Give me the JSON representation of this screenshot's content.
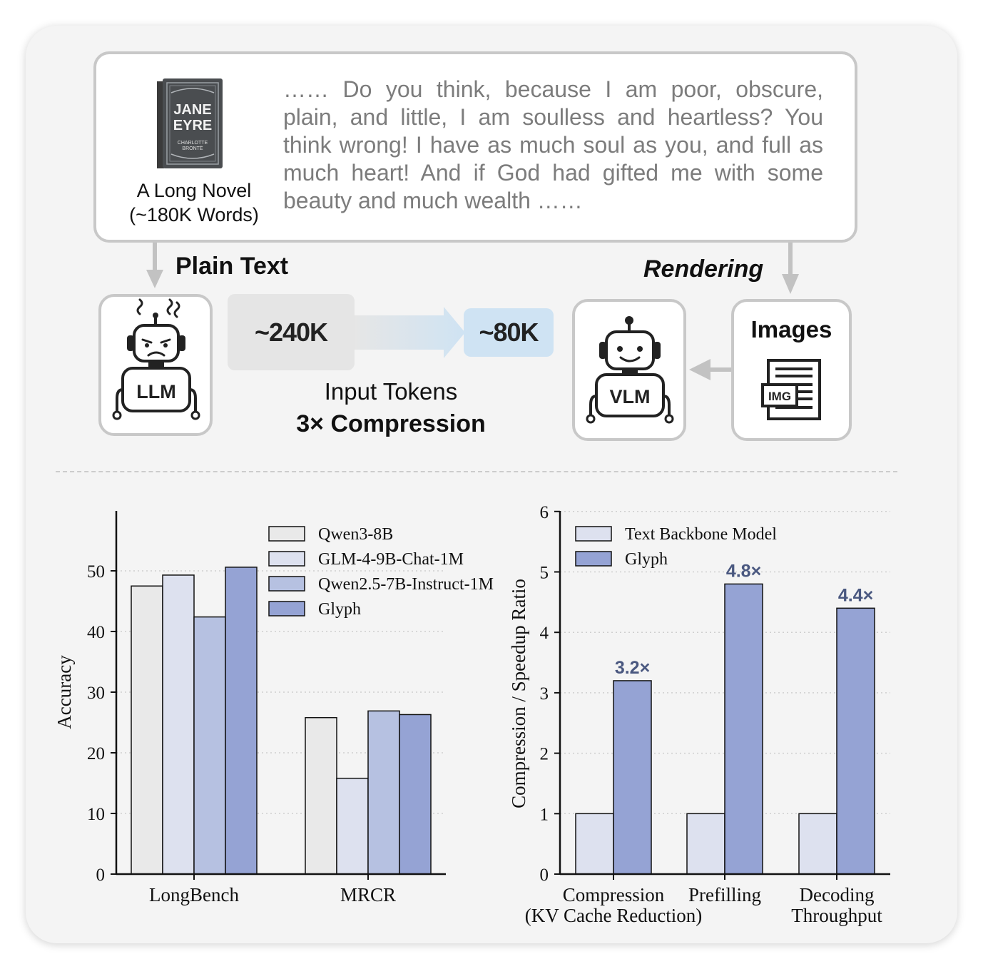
{
  "top": {
    "book_cover_text": [
      "JANE",
      "EYRE",
      "CHARLOTTE",
      "BRONTË"
    ],
    "novel_label_line1": "A Long Novel",
    "novel_label_line2": "(~180K Words)",
    "quote": "…… Do you think, because I am poor, obscure, plain, and little, I am soulless and heartless? You think wrong! I have as much soul as you, and full as much heart! And if God had gifted me with some beauty and much wealth ……",
    "plain_text_label": "Plain Text",
    "rendering_label": "Rendering",
    "llm_label": "LLM",
    "vlm_label": "VLM",
    "images_label": "Images",
    "img_icon_label": "IMG",
    "tokens_from": "~240K",
    "tokens_to": "~80K",
    "input_tokens_label": "Input Tokens",
    "compression_label": "3× Compression"
  },
  "colors": {
    "qwen3": "#e9e9e9",
    "glm": "#dde1ef",
    "qwen25": "#b6c1e1",
    "glyph": "#95a3d4",
    "text_backbone": "#dde1ef",
    "annotation": "#4a5880"
  },
  "chart_data": [
    {
      "type": "bar",
      "ylabel": "Accuracy",
      "ylim": [
        0,
        60
      ],
      "yticks": [
        0,
        10,
        20,
        30,
        40,
        50
      ],
      "categories": [
        "LongBench",
        "MRCR"
      ],
      "series": [
        {
          "name": "Qwen3-8B",
          "values": [
            47.5,
            25.8
          ]
        },
        {
          "name": "GLM-4-9B-Chat-1M",
          "values": [
            49.3,
            15.8
          ]
        },
        {
          "name": "Qwen2.5-7B-Instruct-1M",
          "values": [
            42.4,
            26.9
          ]
        },
        {
          "name": "Glyph",
          "values": [
            50.6,
            26.3
          ]
        }
      ],
      "grid": true,
      "legend": "top-right"
    },
    {
      "type": "bar",
      "ylabel": "Compression / Speedup Ratio",
      "ylim": [
        0,
        6
      ],
      "yticks": [
        0,
        1,
        2,
        3,
        4,
        5,
        6
      ],
      "categories": [
        [
          "Compression",
          "(KV Cache Reduction)"
        ],
        [
          "Prefilling"
        ],
        [
          "Decoding",
          "Throughput"
        ]
      ],
      "series": [
        {
          "name": "Text Backbone Model",
          "values": [
            1,
            1,
            1
          ]
        },
        {
          "name": "Glyph",
          "values": [
            3.2,
            4.8,
            4.4
          ]
        }
      ],
      "annotations": [
        "3.2×",
        "4.8×",
        "4.4×"
      ],
      "grid": true,
      "legend": "top-left"
    }
  ]
}
